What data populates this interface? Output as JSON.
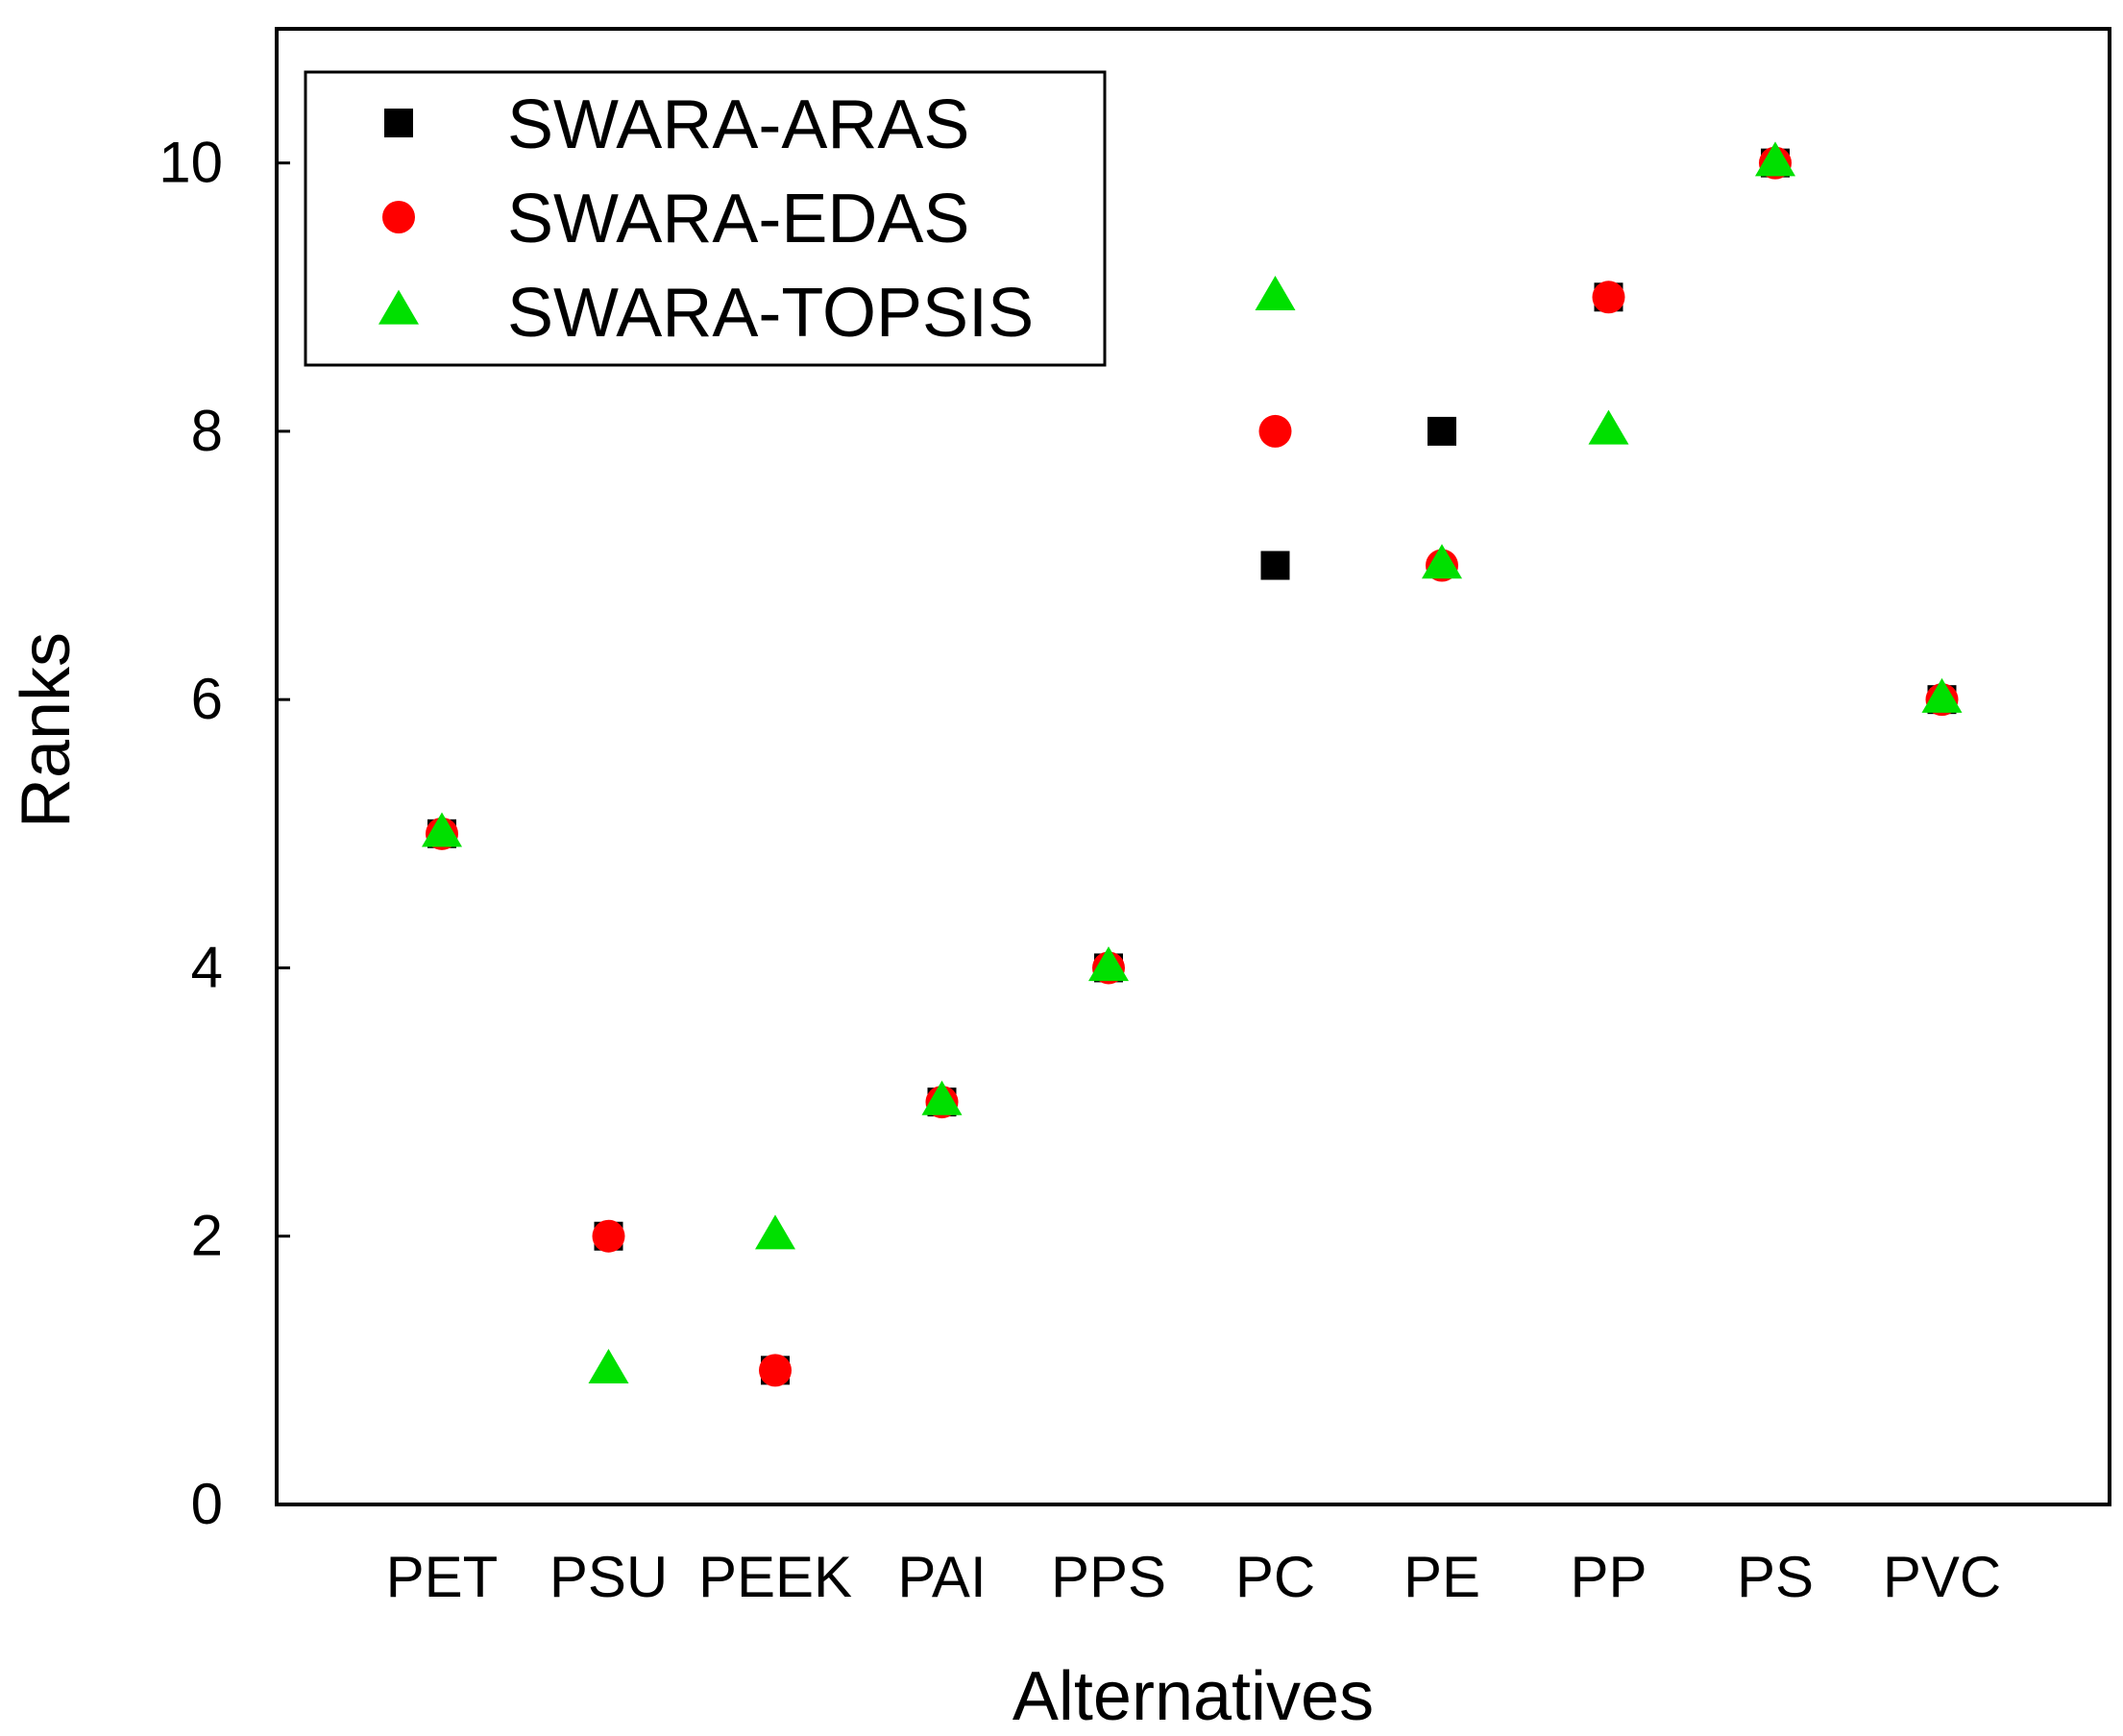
{
  "chart_data": {
    "type": "scatter",
    "xlabel": "Alternatives",
    "ylabel": "Ranks",
    "categories": [
      "PET",
      "PSU",
      "PEEK",
      "PAI",
      "PPS",
      "PC",
      "PE",
      "PP",
      "PS",
      "PVC"
    ],
    "ylim": [
      0,
      11
    ],
    "yticks": [
      0,
      2,
      4,
      6,
      8,
      10
    ],
    "grid": false,
    "legend_position": "top-left",
    "series": [
      {
        "name": "SWARA-ARAS",
        "marker": "square",
        "color": "#000000",
        "values": [
          5,
          2,
          1,
          3,
          4,
          7,
          8,
          9,
          10,
          6
        ]
      },
      {
        "name": "SWARA-EDAS",
        "marker": "circle",
        "color": "#ff0000",
        "values": [
          5,
          2,
          1,
          3,
          4,
          8,
          7,
          9,
          10,
          6
        ]
      },
      {
        "name": "SWARA-TOPSIS",
        "marker": "triangle",
        "color": "#00e000",
        "values": [
          5,
          1,
          2,
          3,
          4,
          9,
          7,
          8,
          10,
          6
        ]
      }
    ]
  }
}
